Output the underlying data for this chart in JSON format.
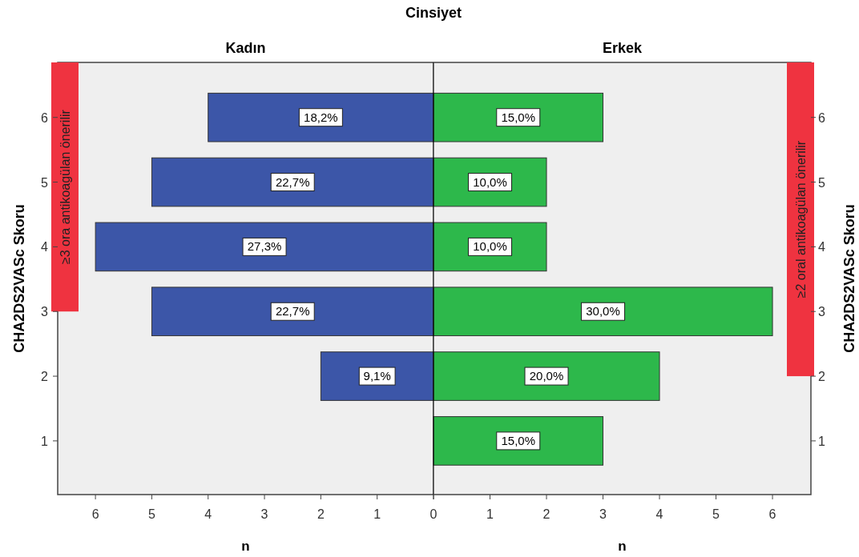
{
  "chart_data": [
    {
      "type": "bar",
      "orientation": "horizontal",
      "title": "Kadın",
      "xlabel": "n",
      "ylabel": "CHA2DS2VASc Skoru",
      "x": [
        2,
        3,
        4,
        5,
        6
      ],
      "values": [
        2,
        5,
        6,
        5,
        4
      ],
      "color": "#3c56a8",
      "annotations": [
        "9,1%",
        "22,7%",
        "27,3%",
        "22,7%",
        "18,2%",
        "Cinsiyet"
      ],
      "xlim": [
        6.67,
        0
      ],
      "xticks": [
        0,
        1,
        2,
        3,
        4,
        5,
        6
      ],
      "ylim": [
        0.17,
        6.85
      ],
      "yticks": [
        1,
        2,
        3,
        4,
        5,
        6
      ],
      "bands": [
        {
          "axis": "y",
          "from": 3,
          "to": 6.85,
          "label": "≥3  ora antikoagülan önerilir",
          "color": "#ef3340"
        }
      ]
    },
    {
      "type": "bar",
      "orientation": "horizontal",
      "title": "Erkek",
      "xlabel": "n",
      "ylabel": "CHA2DS2VASc Skoru",
      "x": [
        1,
        2,
        3,
        4,
        5,
        6
      ],
      "values": [
        3,
        4,
        6,
        2,
        2,
        3
      ],
      "color": "#2db84b",
      "annotations": [
        "15,0%",
        "20,0%",
        "30,0%",
        "10,0%",
        "10,0%",
        "15,0%"
      ],
      "xlim": [
        0,
        6.68
      ],
      "xticks": [
        {
          "value": 0,
          "label": null
        },
        1,
        2,
        3,
        4,
        5,
        6
      ],
      "ylim": [
        0.17,
        6.85
      ],
      "yticks": [
        1,
        2,
        3,
        4,
        5,
        6
      ],
      "bands": [
        {
          "axis": "y",
          "from": 2,
          "to": 6.85,
          "label": "≥2  oral antikoagülan önerilir",
          "color": "#ef3340"
        }
      ]
    }
  ]
}
